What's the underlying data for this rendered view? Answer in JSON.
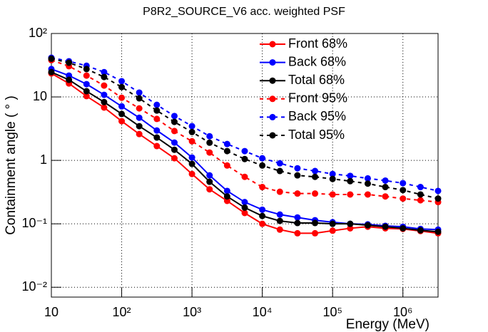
{
  "chart_data": {
    "type": "line",
    "title": "P8R2_SOURCE_V6 acc. weighted PSF",
    "x_label": "Energy (MeV)",
    "y_label": "Containment angle ( ° )",
    "log_x": true,
    "log_y": true,
    "grid": true,
    "legend": "upper right",
    "x": [
      10,
      17.78,
      31.62,
      56.23,
      100,
      177.8,
      316.2,
      562.3,
      1000,
      1778,
      3162,
      5623,
      10000,
      17783,
      31623,
      56234,
      100000,
      177828,
      316228,
      562341,
      1000000,
      1778279,
      3162278
    ],
    "xlim": [
      10,
      3162278
    ],
    "ylim": [
      0.007,
      100
    ],
    "xticks": [
      10,
      {
        "value": 100,
        "label": "10²"
      },
      {
        "value": 1000,
        "label": "10³"
      },
      {
        "value": 10000,
        "label": "10⁴"
      },
      {
        "value": 100000,
        "label": "10⁵"
      },
      {
        "value": 1000000,
        "label": "10⁶"
      }
    ],
    "yticks": [
      {
        "value": 0.01,
        "label": "10⁻²"
      },
      {
        "value": 0.1,
        "label": "10⁻¹"
      },
      1,
      10,
      {
        "value": 100,
        "label": "10²"
      }
    ],
    "series": [
      {
        "name": "Front 68%",
        "color": "#ff0000",
        "linestyle": "solid",
        "values": [
          23.5,
          16.3,
          10.3,
          6.8,
          4.15,
          2.6,
          1.68,
          1.08,
          0.61,
          0.35,
          0.23,
          0.148,
          0.1,
          0.081,
          0.071,
          0.071,
          0.078,
          0.085,
          0.09,
          0.085,
          0.083,
          0.077,
          0.071
        ]
      },
      {
        "name": "Back 68%",
        "color": "#0000ff",
        "linestyle": "solid",
        "values": [
          27.5,
          21.7,
          15.9,
          10.8,
          7.1,
          4.7,
          2.96,
          1.91,
          1.11,
          0.58,
          0.33,
          0.22,
          0.167,
          0.14,
          0.126,
          0.114,
          0.106,
          0.1,
          0.098,
          0.093,
          0.09,
          0.083,
          0.081
        ]
      },
      {
        "name": "Total 68%",
        "color": "#000000",
        "linestyle": "solid",
        "values": [
          24.6,
          18.6,
          12.3,
          8.3,
          5.4,
          3.46,
          2.29,
          1.47,
          0.88,
          0.46,
          0.27,
          0.18,
          0.133,
          0.111,
          0.103,
          0.103,
          0.1,
          0.1,
          0.095,
          0.09,
          0.085,
          0.079,
          0.075
        ]
      },
      {
        "name": "Front 95%",
        "color": "#ff0000",
        "linestyle": "dashed",
        "values": [
          38,
          30.5,
          21.7,
          15.1,
          9.7,
          6.6,
          4.5,
          2.9,
          2.0,
          1.33,
          0.83,
          0.55,
          0.38,
          0.32,
          0.3,
          0.3,
          0.29,
          0.29,
          0.29,
          0.27,
          0.25,
          0.235,
          0.22
        ]
      },
      {
        "name": "Back 95%",
        "color": "#0000ff",
        "linestyle": "dashed",
        "values": [
          41.5,
          36.5,
          31,
          24.6,
          17.7,
          11.7,
          7.5,
          5.0,
          3.46,
          2.4,
          1.81,
          1.4,
          1.08,
          0.9,
          0.75,
          0.68,
          0.61,
          0.57,
          0.52,
          0.48,
          0.437,
          0.38,
          0.33
        ]
      },
      {
        "name": "Total 95%",
        "color": "#000000",
        "linestyle": "dashed",
        "values": [
          40,
          34.6,
          27.5,
          20.6,
          14.3,
          9.5,
          6.1,
          4.04,
          2.8,
          1.9,
          1.4,
          1.05,
          0.83,
          0.68,
          0.58,
          0.55,
          0.51,
          0.47,
          0.43,
          0.38,
          0.34,
          0.29,
          0.25
        ]
      }
    ]
  }
}
